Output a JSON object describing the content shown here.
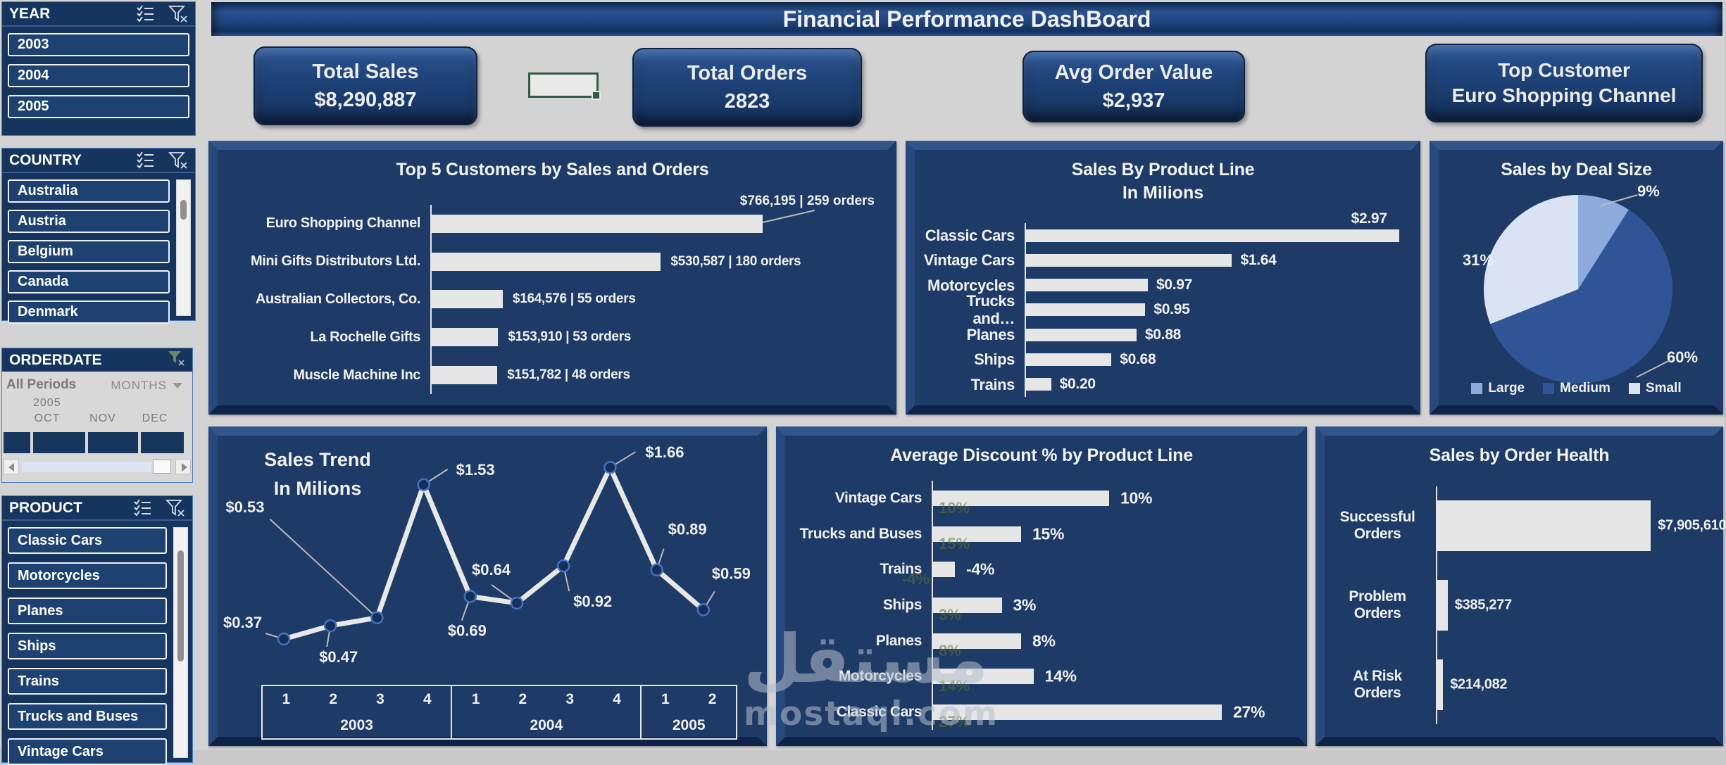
{
  "header": {
    "title": "Financial Performance DashBoard"
  },
  "kpis": [
    {
      "label": "Total Sales",
      "value": "$8,290,887"
    },
    {
      "label": "Total Orders",
      "value": "2823"
    },
    {
      "label": "Avg Order Value",
      "value": "$2,937"
    },
    {
      "label": "Top Customer",
      "value": "Euro Shopping Channel"
    }
  ],
  "slicers": {
    "year": {
      "title": "YEAR",
      "items": [
        "2003",
        "2004",
        "2005"
      ]
    },
    "country": {
      "title": "COUNTRY",
      "items": [
        "Australia",
        "Austria",
        "Belgium",
        "Canada",
        "Denmark"
      ]
    },
    "product": {
      "title": "PRODUCT",
      "items": [
        "Classic Cars",
        "Motorcycles",
        "Planes",
        "Ships",
        "Trains",
        "Trucks and Buses",
        "Vintage Cars"
      ]
    }
  },
  "timeline": {
    "title": "ORDERDATE",
    "period_label": "All Periods",
    "granularity": "MONTHS",
    "year_label": "2005",
    "months": [
      "OCT",
      "NOV",
      "DEC"
    ]
  },
  "watermark": {
    "arabic": "مستقل",
    "latin": "mostaql.com"
  },
  "chart_data": [
    {
      "id": "top5",
      "type": "bar",
      "orientation": "horizontal",
      "title": "Top 5 Customers by Sales and Orders",
      "categories": [
        "Euro Shopping Channel",
        "Mini Gifts Distributors Ltd.",
        "Australian Collectors, Co.",
        "La Rochelle Gifts",
        "Muscle Machine Inc"
      ],
      "values": [
        766195,
        530587,
        164576,
        153910,
        151782
      ],
      "orders": [
        259,
        180,
        55,
        53,
        48
      ],
      "labels": [
        "$766,195  |  259 orders",
        "$530,587  |  180 orders",
        "$164,576  |  55 orders",
        "$153,910  |  53 orders",
        "$151,782  |  48 orders"
      ]
    },
    {
      "id": "productline",
      "type": "bar",
      "orientation": "horizontal",
      "title": "Sales By Product Line",
      "subtitle": "In Milions",
      "categories": [
        "Classic Cars",
        "Vintage Cars",
        "Motorcycles",
        "Trucks and…",
        "Planes",
        "Ships",
        "Trains"
      ],
      "values": [
        2.97,
        1.64,
        0.97,
        0.95,
        0.88,
        0.68,
        0.2
      ],
      "labels": [
        "$2.97",
        "$1.64",
        "$0.97",
        "$0.95",
        "$0.88",
        "$0.68",
        "$0.20"
      ]
    },
    {
      "id": "dealsize",
      "type": "pie",
      "title": "Sales by Deal Size",
      "categories": [
        "Large",
        "Medium",
        "Small"
      ],
      "values": [
        9,
        60,
        31
      ],
      "labels": [
        "9%",
        "60%",
        "31%"
      ],
      "colors": [
        "#8faadc",
        "#2f5597",
        "#dae3f3"
      ],
      "legend_position": "bottom"
    },
    {
      "id": "trend",
      "type": "line",
      "title": "Sales Trend",
      "subtitle": "In Milions",
      "x_groups": [
        {
          "year": "2003",
          "quarters": [
            "1",
            "2",
            "3",
            "4"
          ]
        },
        {
          "year": "2004",
          "quarters": [
            "1",
            "2",
            "3",
            "4"
          ]
        },
        {
          "year": "2005",
          "quarters": [
            "1",
            "2"
          ]
        }
      ],
      "values": [
        0.37,
        0.47,
        0.53,
        1.53,
        0.69,
        0.64,
        0.92,
        1.66,
        0.89,
        0.59
      ],
      "labels": [
        "$0.37",
        "$0.47",
        "$0.53",
        "$1.53",
        "$0.69",
        "$0.64",
        "$0.92",
        "$1.66",
        "$0.89",
        "$0.59"
      ]
    },
    {
      "id": "discount",
      "type": "bar",
      "orientation": "horizontal",
      "title": "Average Discount % by Product Line",
      "categories": [
        "Vintage Cars",
        "Trucks and Buses",
        "Trains",
        "Ships",
        "Planes",
        "Motorcycles",
        "Classic Cars"
      ],
      "values": [
        10,
        15,
        -4,
        3,
        8,
        14,
        27
      ],
      "labels": [
        "10%",
        "15%",
        "-4%",
        "3%",
        "8%",
        "14%",
        "27%"
      ],
      "bar_fractions": [
        0.5,
        0.25,
        0.062,
        0.195,
        0.25,
        0.285,
        0.82
      ]
    },
    {
      "id": "health",
      "type": "bar",
      "orientation": "horizontal",
      "title": "Sales by Order Health",
      "categories": [
        "Successful Orders",
        "Problem Orders",
        "At Risk Orders"
      ],
      "values": [
        7905610,
        385277,
        214082
      ],
      "labels": [
        "$7,905,610",
        "$385,277",
        "$214,082"
      ]
    }
  ]
}
